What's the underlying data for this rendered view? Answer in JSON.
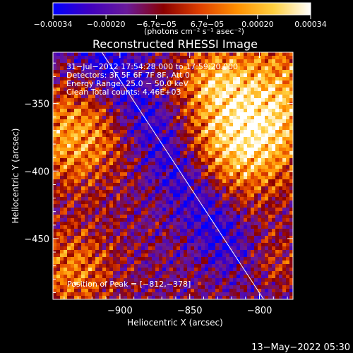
{
  "chart_data": {
    "type": "heatmap",
    "title": "Reconstructed RHESSI Image",
    "xlabel": "Heliocentric X (arcsec)",
    "ylabel": "Heliocentric Y (arcsec)",
    "xlim": [
      -948,
      -776
    ],
    "ylim": [
      -495,
      -312
    ],
    "x_ticks": [
      {
        "value": -900,
        "label": "−900"
      },
      {
        "value": -850,
        "label": "−850"
      },
      {
        "value": -800,
        "label": "−800"
      }
    ],
    "y_ticks": [
      {
        "value": -350,
        "label": "−350"
      },
      {
        "value": -400,
        "label": "−400"
      },
      {
        "value": -450,
        "label": "−450"
      }
    ],
    "colorbar": {
      "range": [
        -0.00034,
        0.00034
      ],
      "ticks": [
        {
          "value": -0.00034,
          "label": "−0.00034"
        },
        {
          "value": -0.0002,
          "label": "−0.00020"
        },
        {
          "value": -6.7e-05,
          "label": "−6.7e−05"
        },
        {
          "value": 6.7e-05,
          "label": "6.7e−05"
        },
        {
          "value": 0.0002,
          "label": "0.00020"
        },
        {
          "value": 0.00034,
          "label": "0.00034"
        }
      ],
      "unit_label": "(photons cm⁻² s⁻¹ asec⁻²)",
      "colors": [
        "#0000ff",
        "#4000c0",
        "#6a1a9a",
        "#8a0000",
        "#e04000",
        "#ff9000",
        "#ffd040",
        "#ffffff"
      ]
    },
    "annotations": [
      "31−Jul−2012 17:54:28.000 to 17:59:20.000",
      "Detectors: 3F 5F 6F 7F 8F, Att 0",
      "Energy Range: 25.0 − 50.0 keV",
      "Clean     Total counts: 4.46E+03"
    ],
    "peak_label": "Position of Peak = [−812,−378]",
    "limb_line": {
      "x": [
        -913,
        -797
      ],
      "y": [
        -312,
        -495
      ]
    },
    "peak": {
      "x": -812,
      "y": -378
    }
  },
  "footer": {
    "timestamp": "13−May−2022 05:30"
  }
}
